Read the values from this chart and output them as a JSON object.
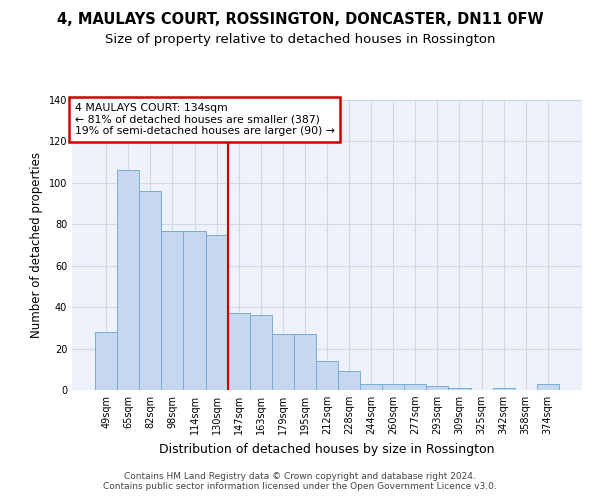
{
  "title": "4, MAULAYS COURT, ROSSINGTON, DONCASTER, DN11 0FW",
  "subtitle": "Size of property relative to detached houses in Rossington",
  "xlabel": "Distribution of detached houses by size in Rossington",
  "ylabel": "Number of detached properties",
  "categories": [
    "49sqm",
    "65sqm",
    "82sqm",
    "98sqm",
    "114sqm",
    "130sqm",
    "147sqm",
    "163sqm",
    "179sqm",
    "195sqm",
    "212sqm",
    "228sqm",
    "244sqm",
    "260sqm",
    "277sqm",
    "293sqm",
    "309sqm",
    "325sqm",
    "342sqm",
    "358sqm",
    "374sqm"
  ],
  "values": [
    28,
    106,
    96,
    77,
    77,
    75,
    37,
    36,
    27,
    27,
    14,
    9,
    3,
    3,
    3,
    2,
    1,
    0,
    1,
    0,
    3
  ],
  "bar_color": "#c5d8f0",
  "bar_edge_color": "#7aadd4",
  "vline_x_index": 6,
  "vline_color": "#cc0000",
  "annotation_line1": "4 MAULAYS COURT: 134sqm",
  "annotation_line2": "← 81% of detached houses are smaller (387)",
  "annotation_line3": "19% of semi-detached houses are larger (90) →",
  "annotation_box_color": "#cc0000",
  "ylim": [
    0,
    140
  ],
  "yticks": [
    0,
    20,
    40,
    60,
    80,
    100,
    120,
    140
  ],
  "grid_color": "#d0d8e8",
  "background_color": "#eef2fa",
  "footer_line1": "Contains HM Land Registry data © Crown copyright and database right 2024.",
  "footer_line2": "Contains public sector information licensed under the Open Government Licence v3.0.",
  "title_fontsize": 10.5,
  "subtitle_fontsize": 9.5,
  "tick_fontsize": 7,
  "ylabel_fontsize": 8.5,
  "xlabel_fontsize": 9,
  "footer_fontsize": 6.5
}
